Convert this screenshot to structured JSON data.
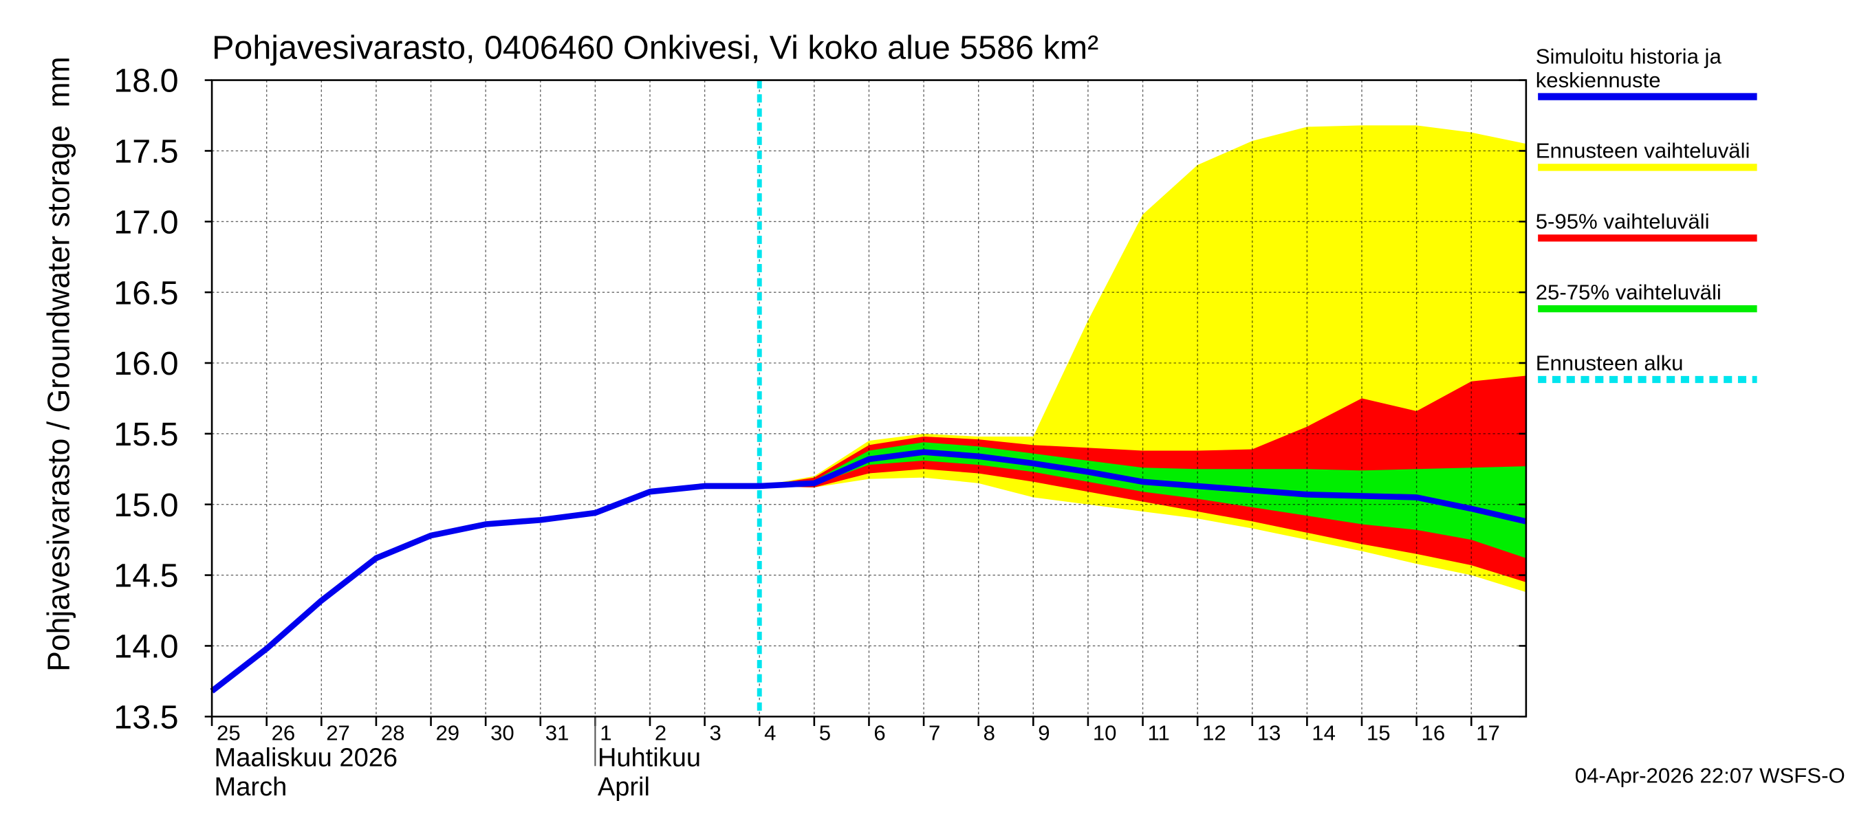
{
  "chart_data": {
    "type": "line",
    "title": "Pohjavesivarasto, 0406460 Onkivesi, Vi koko alue 5586 km²",
    "y_label": "Pohjavesivarasto / Groundwater storage",
    "y_unit": "mm",
    "footer": "04-Apr-2026 22:07 WSFS-O",
    "months": [
      {
        "x": "2026-03-25",
        "label": "Maaliskuu 2026",
        "label_en": "March"
      },
      {
        "x": "2026-04-01",
        "label": "Huhtikuu",
        "label_en": "April"
      }
    ],
    "xlim": [
      "2026-03-25",
      "2026-04-18"
    ],
    "ylim": [
      13.5,
      18
    ],
    "yticks": [
      13.5,
      {
        "value": 14,
        "label": "14.0"
      },
      14.5,
      {
        "value": 15,
        "label": "15.0"
      },
      15.5,
      {
        "value": 16,
        "label": "16.0"
      },
      16.5,
      {
        "value": 17,
        "label": "17.0"
      },
      17.5,
      {
        "value": 18,
        "label": "18.0"
      }
    ],
    "xticks": [
      {
        "value": "2026-03-25",
        "label": "25"
      },
      {
        "value": "2026-03-26",
        "label": "26"
      },
      {
        "value": "2026-03-27",
        "label": "27"
      },
      {
        "value": "2026-03-28",
        "label": "28"
      },
      {
        "value": "2026-03-29",
        "label": "29"
      },
      {
        "value": "2026-03-30",
        "label": "30"
      },
      {
        "value": "2026-03-31",
        "label": "31"
      },
      {
        "value": "2026-04-01",
        "label": "1"
      },
      {
        "value": "2026-04-02",
        "label": "2"
      },
      {
        "value": "2026-04-03",
        "label": "3"
      },
      {
        "value": "2026-04-04",
        "label": "4"
      },
      {
        "value": "2026-04-05",
        "label": "5"
      },
      {
        "value": "2026-04-06",
        "label": "6"
      },
      {
        "value": "2026-04-07",
        "label": "7"
      },
      {
        "value": "2026-04-08",
        "label": "8"
      },
      {
        "value": "2026-04-09",
        "label": "9"
      },
      {
        "value": "2026-04-10",
        "label": "10"
      },
      {
        "value": "2026-04-11",
        "label": "11"
      },
      {
        "value": "2026-04-12",
        "label": "12"
      },
      {
        "value": "2026-04-13",
        "label": "13"
      },
      {
        "value": "2026-04-14",
        "label": "14"
      },
      {
        "value": "2026-04-15",
        "label": "15"
      },
      {
        "value": "2026-04-16",
        "label": "16"
      },
      {
        "value": "2026-04-17",
        "label": "17"
      }
    ],
    "grid": true,
    "x": [
      "2026-03-25",
      "2026-03-26",
      "2026-03-27",
      "2026-03-28",
      "2026-03-29",
      "2026-03-30",
      "2026-03-31",
      "2026-04-01",
      "2026-04-02",
      "2026-04-03",
      "2026-04-04",
      "2026-04-05",
      "2026-04-06",
      "2026-04-07",
      "2026-04-08",
      "2026-04-09",
      "2026-04-10",
      "2026-04-11",
      "2026-04-12",
      "2026-04-13",
      "2026-04-14",
      "2026-04-15",
      "2026-04-16",
      "2026-04-17",
      "2026-04-18"
    ],
    "series": [
      {
        "name": "Simuloitu historia ja keskiennuste",
        "color": "#0000ee",
        "values": [
          13.68,
          13.98,
          14.32,
          14.62,
          14.78,
          14.86,
          14.89,
          14.94,
          15.09,
          15.13,
          15.13,
          15.15,
          15.32,
          15.37,
          15.34,
          15.29,
          15.23,
          15.16,
          15.13,
          15.1,
          15.07,
          15.06,
          15.05,
          14.97,
          14.88
        ]
      }
    ],
    "forecast_x": [
      "2026-04-04",
      "2026-04-05",
      "2026-04-06",
      "2026-04-07",
      "2026-04-08",
      "2026-04-09",
      "2026-04-10",
      "2026-04-11",
      "2026-04-12",
      "2026-04-13",
      "2026-04-14",
      "2026-04-15",
      "2026-04-16",
      "2026-04-17",
      "2026-04-18"
    ],
    "bands": [
      {
        "name": "Ennusteen vaihteluväli",
        "color": "#ffff00",
        "upper": [
          15.13,
          15.2,
          15.45,
          15.5,
          15.48,
          15.48,
          16.3,
          17.05,
          17.4,
          17.57,
          17.67,
          17.68,
          17.68,
          17.63,
          17.55
        ],
        "lower": [
          15.13,
          15.12,
          15.18,
          15.19,
          15.15,
          15.05,
          15,
          14.95,
          14.9,
          14.83,
          14.75,
          14.67,
          14.58,
          14.5,
          14.38
        ]
      },
      {
        "name": "5-95% vaihteluväli",
        "color": "#ff0000",
        "upper": [
          15.13,
          15.19,
          15.42,
          15.48,
          15.46,
          15.42,
          15.4,
          15.38,
          15.38,
          15.39,
          15.55,
          15.75,
          15.66,
          15.87,
          15.91
        ],
        "lower": [
          15.13,
          15.12,
          15.22,
          15.25,
          15.22,
          15.16,
          15.09,
          15.02,
          14.95,
          14.88,
          14.8,
          14.72,
          14.65,
          14.57,
          14.45
        ]
      },
      {
        "name": "25-75% vaihteluväli",
        "color": "#00ee00",
        "upper": [
          15.13,
          15.17,
          15.38,
          15.44,
          15.41,
          15.36,
          15.31,
          15.26,
          15.25,
          15.25,
          15.25,
          15.24,
          15.25,
          15.26,
          15.27
        ],
        "lower": [
          15.13,
          15.14,
          15.28,
          15.31,
          15.28,
          15.23,
          15.16,
          15.09,
          15.04,
          14.98,
          14.92,
          14.86,
          14.82,
          14.75,
          14.62
        ]
      }
    ],
    "forecast_start": {
      "name": "Ennusteen alku",
      "x": "2026-04-04",
      "color": "#00e5ee"
    }
  }
}
